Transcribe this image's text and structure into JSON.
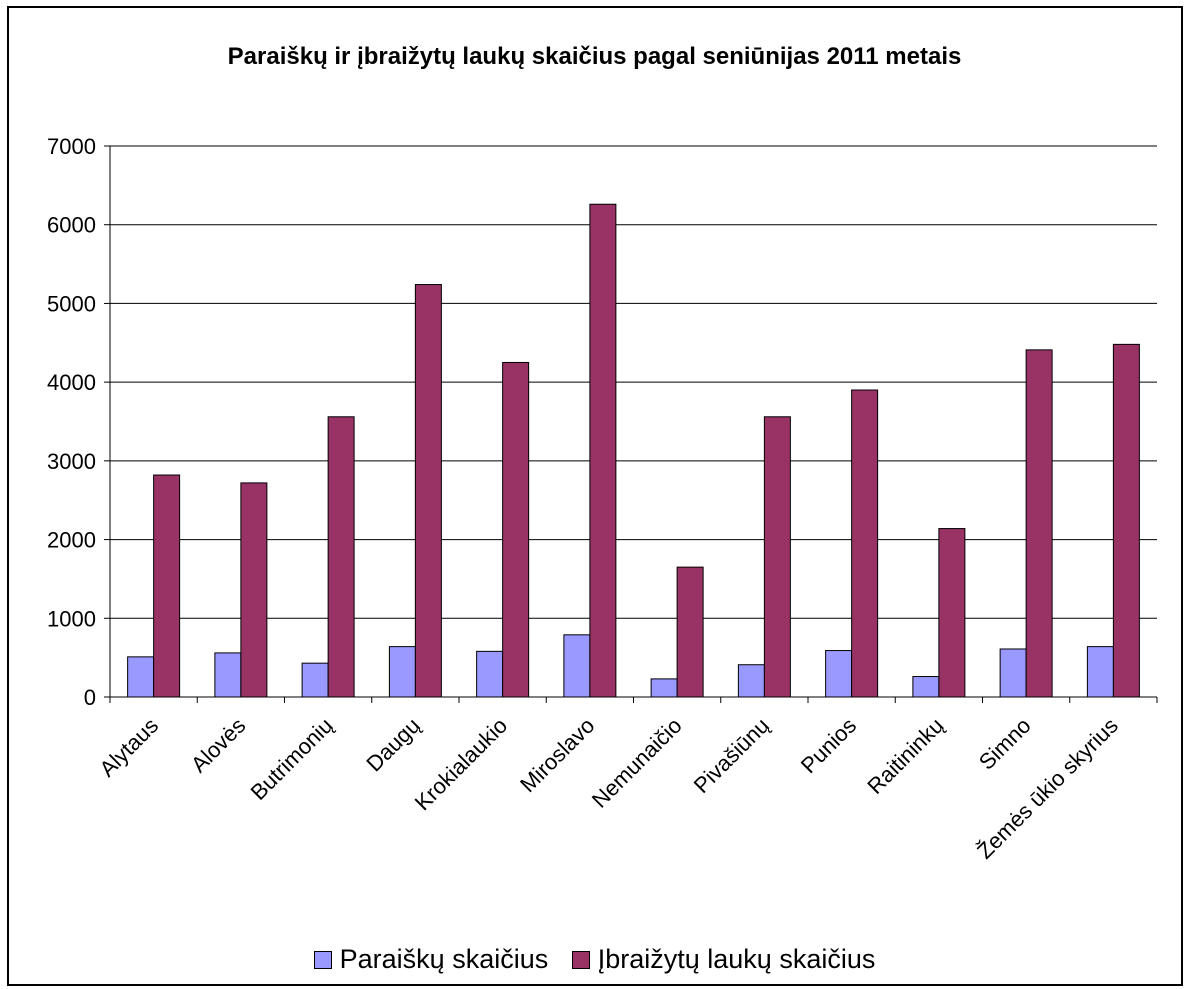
{
  "chart_data": {
    "type": "bar",
    "title": "Paraiškų ir įbraižytų laukų skaičius pagal seniūnijas 2011 metais",
    "xlabel": "",
    "ylabel": "",
    "ylim": [
      0,
      7000
    ],
    "yticks": [
      0,
      1000,
      2000,
      3000,
      4000,
      5000,
      6000,
      7000
    ],
    "grid": true,
    "legend_position": "bottom",
    "categories": [
      "Alytaus",
      "Alovės",
      "Butrimonių",
      "Daugų",
      "Krokialaukio",
      "Miroslavo",
      "Nemunaičio",
      "Pivašiūnų",
      "Punios",
      "Raitininkų",
      "Simno",
      "Žemės ūkio skyrius"
    ],
    "series": [
      {
        "name": "Paraiškų skaičius",
        "color": "#9999ff",
        "values": [
          510,
          560,
          430,
          640,
          580,
          790,
          230,
          410,
          590,
          260,
          610,
          640
        ]
      },
      {
        "name": "Įbraižytų laukų skaičius",
        "color": "#993366",
        "values": [
          2820,
          2720,
          3560,
          5240,
          4250,
          6260,
          1650,
          3560,
          3900,
          2140,
          4410,
          4480
        ]
      }
    ]
  }
}
